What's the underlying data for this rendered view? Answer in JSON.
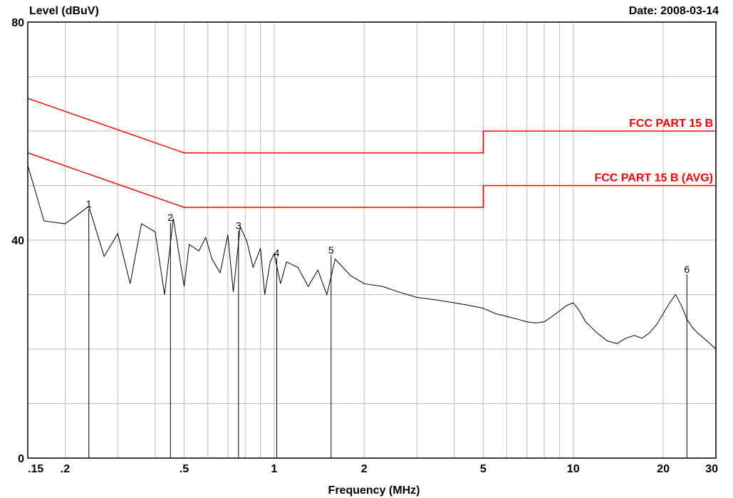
{
  "header": {
    "ylabel": "Level (dBuV)",
    "date": "Date: 2008-03-14"
  },
  "chart_data": {
    "type": "line",
    "xlabel": "Frequency (MHz)",
    "ylabel": "Level (dBuV)",
    "x_scale": "log",
    "xlim": [
      0.15,
      30
    ],
    "ylim": [
      0,
      80
    ],
    "grid": true,
    "x_ticks": [
      {
        "v": 0.15,
        "label": ".15"
      },
      {
        "v": 0.2,
        "label": ".2"
      },
      {
        "v": 0.5,
        "label": ".5"
      },
      {
        "v": 1,
        "label": "1"
      },
      {
        "v": 2,
        "label": "2"
      },
      {
        "v": 5,
        "label": "5"
      },
      {
        "v": 10,
        "label": "10"
      },
      {
        "v": 20,
        "label": "20"
      },
      {
        "v": 30,
        "label": "30"
      }
    ],
    "x_grid": [
      0.2,
      0.3,
      0.4,
      0.5,
      0.6,
      0.7,
      0.8,
      0.9,
      1,
      2,
      3,
      4,
      5,
      6,
      7,
      8,
      9,
      10,
      20,
      30
    ],
    "y_ticks": [
      {
        "v": 0,
        "label": "0"
      },
      {
        "v": 40,
        "label": "40"
      },
      {
        "v": 80,
        "label": "80"
      }
    ],
    "y_grid": [
      10,
      20,
      30,
      40,
      50,
      60,
      70
    ],
    "limit_lines": [
      {
        "name": "FCC PART 15 B",
        "color": "#ff0000",
        "points": [
          [
            0.15,
            66
          ],
          [
            0.5,
            56
          ],
          [
            5,
            56
          ],
          [
            5,
            60
          ],
          [
            30,
            60
          ]
        ]
      },
      {
        "name": "FCC PART 15 B (AVG)",
        "color": "#ff0000",
        "points": [
          [
            0.15,
            56
          ],
          [
            0.5,
            46
          ],
          [
            5,
            46
          ],
          [
            5,
            50
          ],
          [
            30,
            50
          ]
        ]
      }
    ],
    "series": [
      {
        "color": "#000000",
        "points": [
          [
            0.15,
            53.7
          ],
          [
            0.17,
            43.5
          ],
          [
            0.2,
            43.0
          ],
          [
            0.24,
            46.2
          ],
          [
            0.27,
            37.0
          ],
          [
            0.3,
            41.2
          ],
          [
            0.33,
            32.0
          ],
          [
            0.36,
            43.0
          ],
          [
            0.4,
            41.5
          ],
          [
            0.43,
            30.0
          ],
          [
            0.46,
            44.0
          ],
          [
            0.5,
            31.5
          ],
          [
            0.52,
            39.2
          ],
          [
            0.56,
            38.0
          ],
          [
            0.59,
            40.5
          ],
          [
            0.62,
            36.5
          ],
          [
            0.66,
            34.0
          ],
          [
            0.7,
            41.0
          ],
          [
            0.73,
            30.5
          ],
          [
            0.77,
            42.5
          ],
          [
            0.81,
            39.8
          ],
          [
            0.85,
            35.0
          ],
          [
            0.9,
            38.5
          ],
          [
            0.93,
            30.0
          ],
          [
            0.97,
            36.0
          ],
          [
            1.0,
            37.5
          ],
          [
            1.05,
            32.0
          ],
          [
            1.1,
            36.0
          ],
          [
            1.2,
            35.0
          ],
          [
            1.3,
            31.5
          ],
          [
            1.4,
            34.5
          ],
          [
            1.5,
            30.0
          ],
          [
            1.6,
            36.5
          ],
          [
            1.8,
            33.5
          ],
          [
            2.0,
            32.0
          ],
          [
            2.3,
            31.5
          ],
          [
            2.6,
            30.5
          ],
          [
            3.0,
            29.5
          ],
          [
            3.5,
            29.0
          ],
          [
            4.0,
            28.5
          ],
          [
            4.5,
            28.0
          ],
          [
            5.0,
            27.5
          ],
          [
            5.5,
            26.5
          ],
          [
            6.0,
            26.0
          ],
          [
            6.5,
            25.5
          ],
          [
            7.0,
            25.0
          ],
          [
            7.5,
            24.8
          ],
          [
            8.0,
            25.0
          ],
          [
            8.5,
            26.0
          ],
          [
            9.0,
            27.0
          ],
          [
            9.5,
            28.0
          ],
          [
            10.0,
            28.5
          ],
          [
            10.5,
            27.0
          ],
          [
            11.0,
            25.0
          ],
          [
            12.0,
            23.0
          ],
          [
            13.0,
            21.5
          ],
          [
            14.0,
            21.0
          ],
          [
            15.0,
            22.0
          ],
          [
            16.0,
            22.5
          ],
          [
            17.0,
            22.0
          ],
          [
            18.0,
            23.0
          ],
          [
            19.0,
            24.5
          ],
          [
            20.0,
            26.5
          ],
          [
            21.0,
            28.5
          ],
          [
            22.0,
            30.0
          ],
          [
            23.0,
            28.0
          ],
          [
            24.0,
            25.5
          ],
          [
            25.0,
            24.0
          ],
          [
            26.0,
            23.0
          ],
          [
            28.0,
            21.5
          ],
          [
            30.0,
            20.0
          ]
        ]
      }
    ],
    "markers": [
      {
        "label": "1",
        "x": 0.24,
        "y": 46.0
      },
      {
        "label": "2",
        "x": 0.45,
        "y": 43.5
      },
      {
        "label": "3",
        "x": 0.76,
        "y": 42.0
      },
      {
        "label": "4",
        "x": 1.02,
        "y": 37.0
      },
      {
        "label": "5",
        "x": 1.55,
        "y": 37.5
      },
      {
        "label": "6",
        "x": 24.0,
        "y": 34.0
      }
    ],
    "annotations": [
      "FCC PART 15 B",
      "FCC PART 15 B (AVG)"
    ]
  }
}
